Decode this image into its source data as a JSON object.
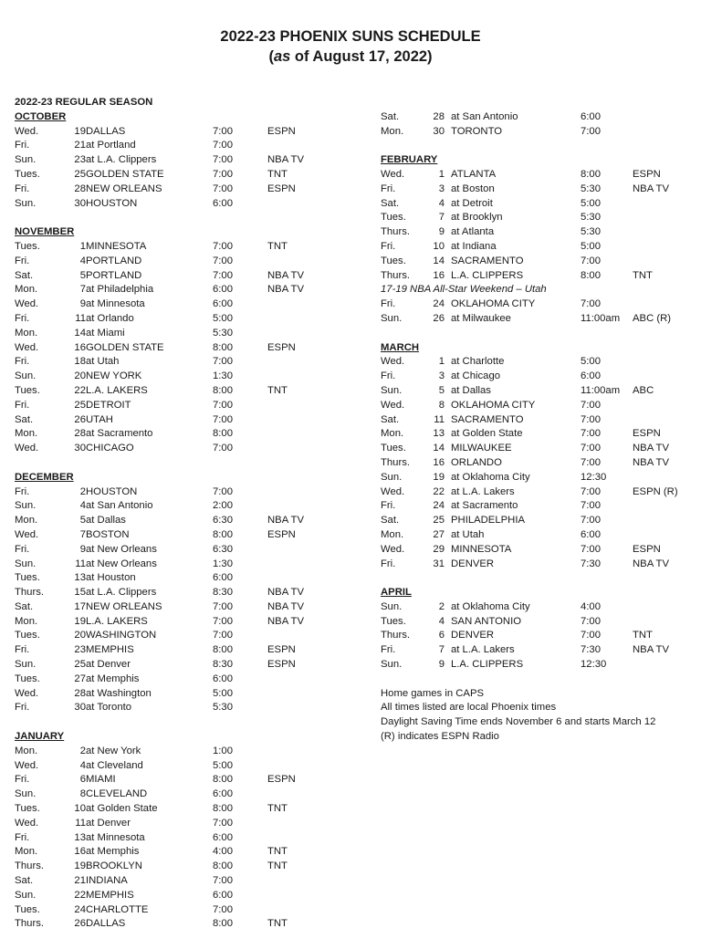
{
  "title": "2022-23 PHOENIX SUNS SCHEDULE",
  "subtitle_prefix": "(",
  "subtitle_italic": "as",
  "subtitle_rest": " of August 17, 2022)",
  "season_label": "2022-23 REGULAR SEASON",
  "left_sections": [
    {
      "name": "OCTOBER",
      "games": [
        {
          "day": "Wed.",
          "date": "19",
          "opp": "DALLAS",
          "time": "7:00",
          "tv": "ESPN"
        },
        {
          "day": "Fri.",
          "date": "21",
          "opp": "at Portland",
          "time": "7:00",
          "tv": ""
        },
        {
          "day": "Sun.",
          "date": "23",
          "opp": "at L.A. Clippers",
          "time": "7:00",
          "tv": "NBA TV"
        },
        {
          "day": "Tues.",
          "date": "25",
          "opp": "GOLDEN STATE",
          "time": "7:00",
          "tv": "TNT"
        },
        {
          "day": "Fri.",
          "date": "28",
          "opp": "NEW ORLEANS",
          "time": "7:00",
          "tv": "ESPN"
        },
        {
          "day": "Sun.",
          "date": "30",
          "opp": "HOUSTON",
          "time": "6:00",
          "tv": ""
        }
      ]
    },
    {
      "name": "NOVEMBER",
      "games": [
        {
          "day": "Tues.",
          "date": "1",
          "opp": "MINNESOTA",
          "time": "7:00",
          "tv": "TNT"
        },
        {
          "day": "Fri.",
          "date": "4",
          "opp": "PORTLAND",
          "time": "7:00",
          "tv": ""
        },
        {
          "day": "Sat.",
          "date": "5",
          "opp": "PORTLAND",
          "time": "7:00",
          "tv": "NBA TV"
        },
        {
          "day": "Mon.",
          "date": "7",
          "opp": "at Philadelphia",
          "time": "6:00",
          "tv": "NBA TV"
        },
        {
          "day": "Wed.",
          "date": "9",
          "opp": "at Minnesota",
          "time": "6:00",
          "tv": ""
        },
        {
          "day": "Fri.",
          "date": "11",
          "opp": "at Orlando",
          "time": "5:00",
          "tv": ""
        },
        {
          "day": "Mon.",
          "date": "14",
          "opp": "at Miami",
          "time": "5:30",
          "tv": ""
        },
        {
          "day": "Wed.",
          "date": "16",
          "opp": "GOLDEN STATE",
          "time": "8:00",
          "tv": "ESPN"
        },
        {
          "day": "Fri.",
          "date": "18",
          "opp": "at Utah",
          "time": "7:00",
          "tv": ""
        },
        {
          "day": "Sun.",
          "date": "20",
          "opp": "NEW YORK",
          "time": "1:30",
          "tv": ""
        },
        {
          "day": "Tues.",
          "date": "22",
          "opp": "L.A. LAKERS",
          "time": "8:00",
          "tv": "TNT"
        },
        {
          "day": "Fri.",
          "date": "25",
          "opp": "DETROIT",
          "time": "7:00",
          "tv": ""
        },
        {
          "day": "Sat.",
          "date": "26",
          "opp": "UTAH",
          "time": "7:00",
          "tv": ""
        },
        {
          "day": "Mon.",
          "date": "28",
          "opp": "at Sacramento",
          "time": "8:00",
          "tv": ""
        },
        {
          "day": "Wed.",
          "date": "30",
          "opp": "CHICAGO",
          "time": "7:00",
          "tv": ""
        }
      ]
    },
    {
      "name": "DECEMBER",
      "games": [
        {
          "day": "Fri.",
          "date": "2",
          "opp": "HOUSTON",
          "time": "7:00",
          "tv": ""
        },
        {
          "day": "Sun.",
          "date": "4",
          "opp": "at San Antonio",
          "time": "2:00",
          "tv": ""
        },
        {
          "day": "Mon.",
          "date": "5",
          "opp": "at Dallas",
          "time": "6:30",
          "tv": "NBA TV"
        },
        {
          "day": "Wed.",
          "date": "7",
          "opp": "BOSTON",
          "time": "8:00",
          "tv": "ESPN"
        },
        {
          "day": "Fri.",
          "date": "9",
          "opp": "at New Orleans",
          "time": "6:30",
          "tv": ""
        },
        {
          "day": "Sun.",
          "date": "11",
          "opp": "at New Orleans",
          "time": "1:30",
          "tv": ""
        },
        {
          "day": "Tues.",
          "date": "13",
          "opp": "at Houston",
          "time": "6:00",
          "tv": ""
        },
        {
          "day": "Thurs.",
          "date": "15",
          "opp": "at L.A. Clippers",
          "time": "8:30",
          "tv": "NBA TV"
        },
        {
          "day": "Sat.",
          "date": "17",
          "opp": "NEW ORLEANS",
          "time": "7:00",
          "tv": "NBA TV"
        },
        {
          "day": "Mon.",
          "date": "19",
          "opp": "L.A. LAKERS",
          "time": "7:00",
          "tv": "NBA TV"
        },
        {
          "day": "Tues.",
          "date": "20",
          "opp": "WASHINGTON",
          "time": "7:00",
          "tv": ""
        },
        {
          "day": "Fri.",
          "date": "23",
          "opp": "MEMPHIS",
          "time": "8:00",
          "tv": "ESPN"
        },
        {
          "day": "Sun.",
          "date": "25",
          "opp": "at Denver",
          "time": "8:30",
          "tv": "ESPN"
        },
        {
          "day": "Tues.",
          "date": "27",
          "opp": "at Memphis",
          "time": "6:00",
          "tv": ""
        },
        {
          "day": "Wed.",
          "date": "28",
          "opp": "at Washington",
          "time": "5:00",
          "tv": ""
        },
        {
          "day": "Fri.",
          "date": "30",
          "opp": "at Toronto",
          "time": "5:30",
          "tv": ""
        }
      ]
    },
    {
      "name": "JANUARY",
      "games": [
        {
          "day": "Mon.",
          "date": "2",
          "opp": "at New York",
          "time": "1:00",
          "tv": ""
        },
        {
          "day": "Wed.",
          "date": "4",
          "opp": "at Cleveland",
          "time": "5:00",
          "tv": ""
        },
        {
          "day": "Fri.",
          "date": "6",
          "opp": "MIAMI",
          "time": "8:00",
          "tv": "ESPN"
        },
        {
          "day": "Sun.",
          "date": "8",
          "opp": "CLEVELAND",
          "time": "6:00",
          "tv": ""
        },
        {
          "day": "Tues.",
          "date": "10",
          "opp": "at Golden State",
          "time": "8:00",
          "tv": "TNT"
        },
        {
          "day": "Wed.",
          "date": "11",
          "opp": "at Denver",
          "time": "7:00",
          "tv": ""
        },
        {
          "day": "Fri.",
          "date": "13",
          "opp": "at Minnesota",
          "time": "6:00",
          "tv": ""
        },
        {
          "day": "Mon.",
          "date": "16",
          "opp": "at Memphis",
          "time": "4:00",
          "tv": "TNT"
        },
        {
          "day": "Thurs.",
          "date": "19",
          "opp": "BROOKLYN",
          "time": "8:00",
          "tv": "TNT"
        },
        {
          "day": "Sat.",
          "date": "21",
          "opp": "INDIANA",
          "time": "7:00",
          "tv": ""
        },
        {
          "day": "Sun.",
          "date": "22",
          "opp": "MEMPHIS",
          "time": "6:00",
          "tv": ""
        },
        {
          "day": "Tues.",
          "date": "24",
          "opp": "CHARLOTTE",
          "time": "7:00",
          "tv": ""
        },
        {
          "day": "Thurs.",
          "date": "26",
          "opp": "DALLAS",
          "time": "8:00",
          "tv": "TNT"
        }
      ]
    }
  ],
  "right_sections": [
    {
      "name": "",
      "games": [
        {
          "day": "Sat.",
          "date": "28",
          "opp": "at San Antonio",
          "time": "6:00",
          "tv": ""
        },
        {
          "day": "Mon.",
          "date": "30",
          "opp": "TORONTO",
          "time": "7:00",
          "tv": ""
        }
      ]
    },
    {
      "name": "FEBRUARY",
      "games": [
        {
          "day": "Wed.",
          "date": "1",
          "opp": "ATLANTA",
          "time": "8:00",
          "tv": "ESPN"
        },
        {
          "day": "Fri.",
          "date": "3",
          "opp": "at Boston",
          "time": "5:30",
          "tv": "NBA TV"
        },
        {
          "day": "Sat.",
          "date": "4",
          "opp": "at Detroit",
          "time": "5:00",
          "tv": ""
        },
        {
          "day": "Tues.",
          "date": "7",
          "opp": "at Brooklyn",
          "time": "5:30",
          "tv": ""
        },
        {
          "day": "Thurs.",
          "date": "9",
          "opp": "at Atlanta",
          "time": "5:30",
          "tv": ""
        },
        {
          "day": "Fri.",
          "date": "10",
          "opp": "at Indiana",
          "time": "5:00",
          "tv": ""
        },
        {
          "day": "Tues.",
          "date": "14",
          "opp": "SACRAMENTO",
          "time": "7:00",
          "tv": ""
        },
        {
          "day": "Thurs.",
          "date": "16",
          "opp": "L.A. CLIPPERS",
          "time": "8:00",
          "tv": "TNT"
        },
        {
          "note": "17-19 NBA All-Star Weekend – Utah"
        },
        {
          "day": "Fri.",
          "date": "24",
          "opp": "OKLAHOMA CITY",
          "time": "7:00",
          "tv": ""
        },
        {
          "day": "Sun.",
          "date": "26",
          "opp": "at Milwaukee",
          "time": "11:00am",
          "tv": "ABC (R)"
        }
      ]
    },
    {
      "name": "MARCH",
      "games": [
        {
          "day": "Wed.",
          "date": "1",
          "opp": "at Charlotte",
          "time": "5:00",
          "tv": ""
        },
        {
          "day": "Fri.",
          "date": "3",
          "opp": "at Chicago",
          "time": "6:00",
          "tv": ""
        },
        {
          "day": "Sun.",
          "date": "5",
          "opp": "at Dallas",
          "time": "11:00am",
          "tv": "ABC"
        },
        {
          "day": "Wed.",
          "date": "8",
          "opp": "OKLAHOMA CITY",
          "time": "7:00",
          "tv": ""
        },
        {
          "day": "Sat.",
          "date": "11",
          "opp": "SACRAMENTO",
          "time": "7:00",
          "tv": ""
        },
        {
          "day": "Mon.",
          "date": "13",
          "opp": "at Golden State",
          "time": "7:00",
          "tv": "ESPN"
        },
        {
          "day": "Tues.",
          "date": "14",
          "opp": "MILWAUKEE",
          "time": "7:00",
          "tv": "NBA TV"
        },
        {
          "day": "Thurs.",
          "date": "16",
          "opp": "ORLANDO",
          "time": "7:00",
          "tv": "NBA TV"
        },
        {
          "day": "Sun.",
          "date": "19",
          "opp": "at Oklahoma City",
          "time": "12:30",
          "tv": ""
        },
        {
          "day": "Wed.",
          "date": "22",
          "opp": "at L.A. Lakers",
          "time": "7:00",
          "tv": "ESPN (R)"
        },
        {
          "day": "Fri.",
          "date": "24",
          "opp": "at Sacramento",
          "time": "7:00",
          "tv": ""
        },
        {
          "day": "Sat.",
          "date": "25",
          "opp": "PHILADELPHIA",
          "time": "7:00",
          "tv": ""
        },
        {
          "day": "Mon.",
          "date": "27",
          "opp": "at Utah",
          "time": "6:00",
          "tv": ""
        },
        {
          "day": "Wed.",
          "date": "29",
          "opp": "MINNESOTA",
          "time": "7:00",
          "tv": "ESPN"
        },
        {
          "day": "Fri.",
          "date": "31",
          "opp": "DENVER",
          "time": "7:30",
          "tv": "NBA TV"
        }
      ]
    },
    {
      "name": "APRIL",
      "games": [
        {
          "day": "Sun.",
          "date": "2",
          "opp": "at Oklahoma City",
          "time": "4:00",
          "tv": ""
        },
        {
          "day": "Tues.",
          "date": "4",
          "opp": "SAN ANTONIO",
          "time": "7:00",
          "tv": ""
        },
        {
          "day": "Thurs.",
          "date": "6",
          "opp": "DENVER",
          "time": "7:00",
          "tv": "TNT"
        },
        {
          "day": "Fri.",
          "date": "7",
          "opp": "at L.A. Lakers",
          "time": "7:30",
          "tv": "NBA TV"
        },
        {
          "day": "Sun.",
          "date": "9",
          "opp": "L.A. CLIPPERS",
          "time": "12:30",
          "tv": ""
        }
      ]
    }
  ],
  "footnotes": [
    "Home games in CAPS",
    "All times listed are local Phoenix times",
    "Daylight Saving Time ends November 6 and starts March 12",
    "(R) indicates ESPN Radio"
  ]
}
